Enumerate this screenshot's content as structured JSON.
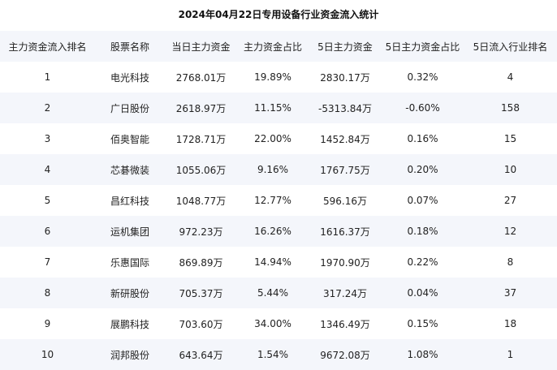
{
  "title": "2024年04月22日专用设备行业资金流入统计",
  "table": {
    "headers": [
      "主力资金流入排名",
      "股票名称",
      "当日主力资金",
      "主力资金占比",
      "5日主力资金",
      "5日主力资金占比",
      "5日流入行业排名"
    ],
    "rows": [
      [
        "1",
        "电光科技",
        "2768.01万",
        "19.89%",
        "2830.17万",
        "0.32%",
        "4"
      ],
      [
        "2",
        "广日股份",
        "2618.97万",
        "11.15%",
        "-5313.84万",
        "-0.60%",
        "158"
      ],
      [
        "3",
        "佰奥智能",
        "1728.71万",
        "22.00%",
        "1452.84万",
        "0.16%",
        "15"
      ],
      [
        "4",
        "芯碁微装",
        "1055.06万",
        "9.16%",
        "1767.75万",
        "0.20%",
        "10"
      ],
      [
        "5",
        "昌红科技",
        "1048.77万",
        "12.77%",
        "596.16万",
        "0.07%",
        "27"
      ],
      [
        "6",
        "运机集团",
        "972.23万",
        "16.26%",
        "1616.37万",
        "0.18%",
        "12"
      ],
      [
        "7",
        "乐惠国际",
        "869.89万",
        "14.94%",
        "1970.90万",
        "0.22%",
        "8"
      ],
      [
        "8",
        "新研股份",
        "705.37万",
        "5.44%",
        "317.24万",
        "0.04%",
        "37"
      ],
      [
        "9",
        "展鹏科技",
        "703.60万",
        "34.00%",
        "1346.49万",
        "0.15%",
        "18"
      ],
      [
        "10",
        "润邦股份",
        "643.64万",
        "1.54%",
        "9672.08万",
        "1.08%",
        "1"
      ]
    ]
  }
}
